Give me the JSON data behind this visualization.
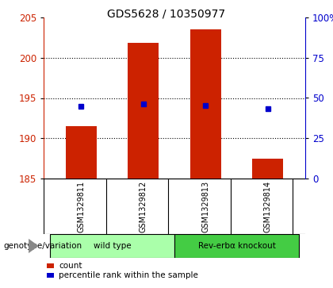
{
  "title": "GDS5628 / 10350977",
  "samples": [
    "GSM1329811",
    "GSM1329812",
    "GSM1329813",
    "GSM1329814"
  ],
  "bar_values": [
    191.5,
    201.8,
    203.5,
    187.5
  ],
  "bar_base": 185.0,
  "percentile_values": [
    194.0,
    194.3,
    194.1,
    193.7
  ],
  "ylim": [
    185,
    205
  ],
  "yticks_left": [
    185,
    190,
    195,
    200,
    205
  ],
  "yticks_right": [
    0,
    25,
    50,
    75,
    100
  ],
  "bar_color": "#cc2200",
  "dot_color": "#0000cc",
  "groups": [
    {
      "label": "wild type",
      "indices": [
        0,
        1
      ],
      "color": "#aaffaa"
    },
    {
      "label": "Rev-erbα knockout",
      "indices": [
        2,
        3
      ],
      "color": "#44cc44"
    }
  ],
  "group_row_label": "genotype/variation",
  "legend_count_label": "count",
  "legend_pct_label": "percentile rank within the sample",
  "title_fontsize": 10,
  "tick_fontsize": 8.5
}
